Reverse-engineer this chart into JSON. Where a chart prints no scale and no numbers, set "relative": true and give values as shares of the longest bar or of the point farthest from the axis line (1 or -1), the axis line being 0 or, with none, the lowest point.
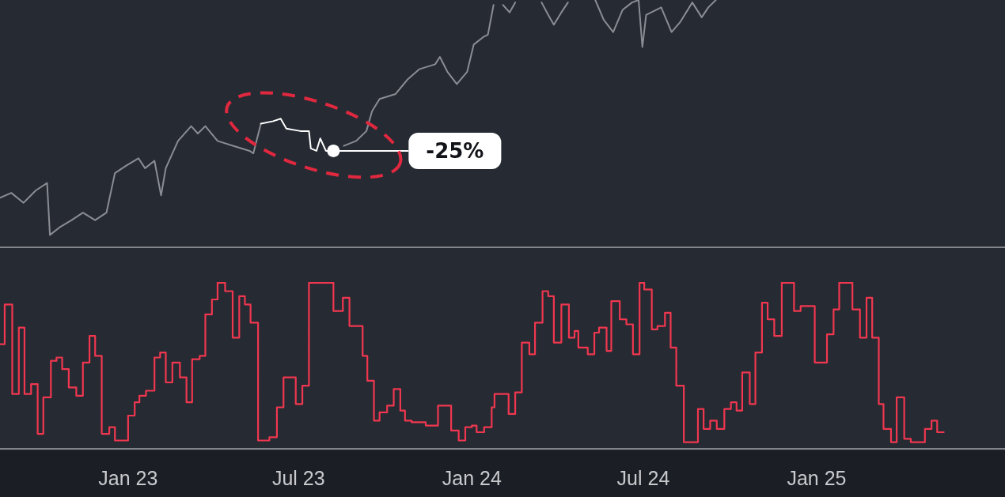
{
  "chart_data": [
    {
      "type": "line",
      "relative": true,
      "marker": "none",
      "tick_labels": false,
      "xlim": [
        "2022-08-18",
        "2025-07-20"
      ],
      "x": [
        "2022-08-18",
        "2022-08-30",
        "2022-09-12",
        "2022-09-25",
        "2022-10-07",
        "2022-10-10",
        "2022-10-20",
        "2022-11-02",
        "2022-11-14",
        "2022-11-27",
        "2022-12-09",
        "2022-12-18",
        "2022-12-30",
        "2023-01-12",
        "2023-01-19",
        "2023-01-29",
        "2023-02-05",
        "2023-02-10",
        "2023-02-23",
        "2023-03-09",
        "2023-03-16",
        "2023-03-24",
        "2023-04-06",
        "2023-04-23",
        "2023-05-10",
        "2023-05-14",
        "2023-05-22",
        "2023-06-04",
        "2023-06-12",
        "2023-06-18",
        "2023-07-03",
        "2023-07-12",
        "2023-07-14",
        "2023-07-20",
        "2023-07-24",
        "2023-07-30",
        "2023-08-07",
        "2023-08-18",
        "2023-08-31",
        "2023-09-11",
        "2023-09-17",
        "2023-09-25",
        "2023-10-12",
        "2023-10-25",
        "2023-11-06",
        "2023-11-23",
        "2023-11-28",
        "2023-12-06",
        "2023-12-16",
        "2023-12-27",
        "2024-01-03",
        "2024-01-13",
        "2024-01-18",
        "2024-01-24",
        "2024-01-28",
        "2024-02-03",
        "2024-02-10",
        "2024-02-16",
        "2024-02-27",
        "2024-03-15",
        "2024-03-22",
        "2024-03-28",
        "2024-04-05",
        "2024-04-12",
        "2024-04-27",
        "2024-05-11",
        "2024-05-20",
        "2024-05-30",
        "2024-06-09",
        "2024-06-19",
        "2024-06-26",
        "2024-06-30",
        "2024-07-04",
        "2024-07-20",
        "2024-07-31",
        "2024-08-09",
        "2024-08-22",
        "2024-09-01",
        "2024-09-08",
        "2024-09-16"
      ],
      "series": [
        {
          "color": "#8a8d93",
          "values": [
            0.2,
            0.22,
            0.18,
            0.23,
            0.26,
            0.05,
            0.08,
            0.11,
            0.14,
            0.11,
            0.14,
            0.3,
            0.33,
            0.36,
            0.32,
            0.35,
            0.21,
            0.32,
            0.43,
            0.49,
            0.46,
            0.49,
            0.43,
            0.41,
            0.39,
            0.38,
            0.5,
            null,
            null,
            null,
            null,
            null,
            null,
            null,
            null,
            null,
            null,
            0.41,
            0.43,
            0.47,
            0.55,
            0.6,
            0.62,
            0.68,
            0.72,
            0.74,
            0.77,
            0.71,
            0.66,
            0.71,
            0.82,
            0.85,
            0.86,
            0.98,
            null,
            0.98,
            0.95,
            0.99,
            null,
            0.99,
            0.94,
            0.9,
            0.95,
            0.99,
            null,
            1.0,
            0.92,
            0.87,
            0.96,
            0.99,
            1.0,
            0.81,
            0.94,
            0.97,
            0.87,
            0.91,
            0.99,
            0.93,
            0.97,
            1.0
          ]
        },
        {
          "color": "#ffffff",
          "x": [
            "2023-05-22",
            "2023-06-04",
            "2023-06-12",
            "2023-06-18",
            "2023-07-03",
            "2023-07-12",
            "2023-07-14",
            "2023-07-20",
            "2023-07-24",
            "2023-07-30",
            "2023-08-07"
          ],
          "values": [
            0.5,
            0.51,
            0.52,
            0.48,
            0.47,
            0.47,
            0.4,
            0.39,
            0.44,
            0.39,
            0.39
          ]
        }
      ],
      "annotations": [
        "-25%"
      ]
    },
    {
      "type": "step",
      "relative": true,
      "marker": "none",
      "tick_labels": "x",
      "xlim": [
        "2022-08-18",
        "2025-07-20"
      ],
      "xticks": [
        {
          "value": "2023-01-01",
          "label": "Jan 23"
        },
        {
          "value": "2023-07-01",
          "label": "Jul 23"
        },
        {
          "value": "2024-01-01",
          "label": "Jan 24"
        },
        {
          "value": "2024-07-01",
          "label": "Jul 24"
        },
        {
          "value": "2025-01-01",
          "label": "Jan 25"
        }
      ],
      "x": [
        "2022-08-18",
        "2022-08-23",
        "2022-08-31",
        "2022-09-07",
        "2022-09-13",
        "2022-09-20",
        "2022-09-27",
        "2022-10-03",
        "2022-10-11",
        "2022-10-17",
        "2022-10-23",
        "2022-10-30",
        "2022-11-07",
        "2022-11-14",
        "2022-11-21",
        "2022-11-27",
        "2022-12-04",
        "2022-12-12",
        "2022-12-18",
        "2023-01-01",
        "2023-01-08",
        "2023-01-13",
        "2023-01-20",
        "2023-01-29",
        "2023-02-04",
        "2023-02-10",
        "2023-02-17",
        "2023-02-25",
        "2023-03-04",
        "2023-03-10",
        "2023-03-18",
        "2023-03-24",
        "2023-03-31",
        "2023-04-06",
        "2023-04-14",
        "2023-04-22",
        "2023-04-29",
        "2023-05-05",
        "2023-05-11",
        "2023-05-19",
        "2023-05-31",
        "2023-06-08",
        "2023-06-15",
        "2023-06-28",
        "2023-07-05",
        "2023-07-12",
        "2023-08-07",
        "2023-08-17",
        "2023-08-24",
        "2023-09-07",
        "2023-09-12",
        "2023-09-19",
        "2023-09-25",
        "2023-10-03",
        "2023-10-10",
        "2023-10-17",
        "2023-10-22",
        "2023-10-29",
        "2023-11-13",
        "2023-11-26",
        "2023-12-10",
        "2023-12-18",
        "2023-12-25",
        "2024-01-01",
        "2024-01-06",
        "2024-01-14",
        "2024-01-22",
        "2024-01-25",
        "2024-02-09",
        "2024-02-16",
        "2024-02-23",
        "2024-03-02",
        "2024-03-08",
        "2024-03-16",
        "2024-03-22",
        "2024-03-28",
        "2024-04-05",
        "2024-04-13",
        "2024-04-19",
        "2024-04-23",
        "2024-05-03",
        "2024-05-10",
        "2024-05-15",
        "2024-05-23",
        "2024-05-28",
        "2024-06-06",
        "2024-06-13",
        "2024-06-20",
        "2024-06-27",
        "2024-07-02",
        "2024-07-10",
        "2024-07-16",
        "2024-07-24",
        "2024-07-30",
        "2024-08-05",
        "2024-08-13",
        "2024-08-28",
        "2024-09-03",
        "2024-09-10",
        "2024-09-17",
        "2024-09-25",
        "2024-10-02",
        "2024-10-08",
        "2024-10-14",
        "2024-10-22",
        "2024-10-28",
        "2024-11-04",
        "2024-11-10",
        "2024-11-17",
        "2024-11-25",
        "2024-12-08",
        "2024-12-15",
        "2024-12-30",
        "2025-01-12",
        "2025-01-19",
        "2025-01-25",
        "2025-02-08",
        "2025-02-16",
        "2025-02-23",
        "2025-03-01",
        "2025-03-08",
        "2025-03-13",
        "2025-03-21",
        "2025-03-27",
        "2025-04-04",
        "2025-04-11",
        "2025-04-26",
        "2025-05-03",
        "2025-05-09",
        "2025-05-16"
      ],
      "series": [
        {
          "color": "#f0374f",
          "values": [
            0.63,
            0.87,
            0.33,
            0.73,
            0.33,
            0.39,
            0.09,
            0.31,
            0.53,
            0.55,
            0.48,
            0.37,
            0.32,
            0.52,
            0.68,
            0.56,
            0.09,
            0.13,
            0.05,
            0.2,
            0.28,
            0.32,
            0.35,
            0.55,
            0.58,
            0.4,
            0.52,
            0.43,
            0.28,
            0.54,
            0.56,
            0.81,
            0.9,
            1.0,
            0.95,
            0.67,
            0.92,
            0.87,
            0.76,
            0.05,
            0.07,
            0.25,
            0.43,
            0.27,
            0.38,
            1.0,
            0.83,
            0.91,
            0.74,
            0.56,
            0.41,
            0.17,
            0.22,
            0.26,
            0.36,
            0.23,
            0.17,
            0.16,
            0.14,
            0.26,
            0.11,
            0.05,
            0.13,
            0.14,
            0.1,
            0.13,
            0.25,
            0.33,
            0.21,
            0.34,
            0.64,
            0.57,
            0.76,
            0.95,
            0.92,
            0.64,
            0.87,
            0.67,
            0.71,
            0.61,
            0.57,
            0.7,
            0.73,
            0.59,
            0.89,
            0.78,
            0.75,
            0.57,
            1.0,
            0.96,
            0.72,
            0.74,
            0.82,
            0.61,
            0.38,
            0.04,
            0.24,
            0.12,
            0.17,
            0.12,
            0.24,
            0.28,
            0.23,
            0.46,
            0.27,
            0.58,
            0.88,
            0.78,
            0.68,
            1.0,
            0.83,
            0.86,
            0.52,
            0.69,
            0.84,
            1.0,
            0.84,
            0.67,
            0.91,
            0.67,
            0.27,
            0.12,
            0.04,
            0.31,
            0.06,
            0.04,
            0.12,
            0.17,
            0.1,
            0.1
          ]
        }
      ]
    }
  ]
}
